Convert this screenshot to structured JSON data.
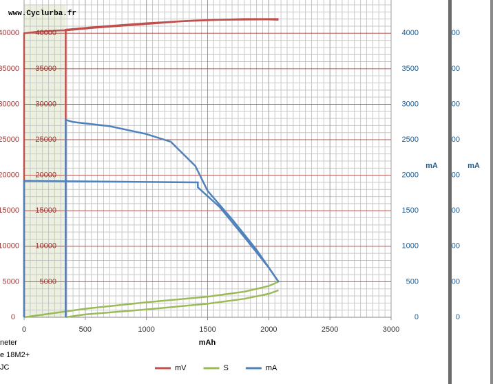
{
  "watermark": "www.Cyclurba.fr",
  "notes": [
    "neter",
    "e 18M2+",
    "JC"
  ],
  "chart_data": {
    "type": "line",
    "xlabel": "mAh",
    "y2label": "mA",
    "xlim": [
      0,
      3000
    ],
    "xticks": [
      0,
      500,
      1000,
      1500,
      2000,
      2500,
      3000
    ],
    "ylim": [
      0,
      44000
    ],
    "yticks": [
      0,
      5000,
      10000,
      15000,
      20000,
      25000,
      30000,
      35000,
      40000
    ],
    "y2lim": [
      0,
      4400
    ],
    "y2ticks": [
      0,
      500,
      1000,
      1500,
      2000,
      2500,
      3000,
      3500,
      4000
    ],
    "grid": true,
    "legend": "bottom",
    "shaded_xrange": [
      0,
      340
    ],
    "series": [
      {
        "name": "mV",
        "color": "#c0504d",
        "axis": "y",
        "x": [
          0,
          0,
          100,
          300,
          340,
          600,
          1000,
          1300,
          1600,
          2000,
          2080,
          null,
          340,
          340,
          600,
          1000,
          1400,
          1800,
          2080
        ],
        "values": [
          0,
          40000,
          40200,
          40400,
          40400,
          40800,
          41300,
          41700,
          41900,
          41950,
          41900,
          null,
          0,
          40500,
          40900,
          41400,
          41800,
          42000,
          42000
        ]
      },
      {
        "name": "S",
        "color": "#9bbb59",
        "axis": "y2",
        "x": [
          0,
          500,
          1000,
          1500,
          1800,
          2000,
          2080,
          null,
          340,
          500,
          1000,
          1500,
          1800,
          2000,
          2080
        ],
        "values": [
          0,
          120,
          210,
          290,
          360,
          440,
          500,
          null,
          0,
          40,
          110,
          190,
          260,
          330,
          380
        ]
      },
      {
        "name": "mA",
        "color": "#4f81bd",
        "axis": "y2",
        "x": [
          0,
          0,
          700,
          1420,
          1420,
          1600,
          1800,
          2000,
          2080,
          null,
          340,
          340,
          400,
          700,
          1000,
          1200,
          1400,
          1500,
          1700,
          1900,
          2080
        ],
        "values": [
          0,
          1920,
          1910,
          1900,
          1830,
          1550,
          1130,
          700,
          500,
          null,
          0,
          2780,
          2750,
          2690,
          2580,
          2470,
          2130,
          1780,
          1380,
          950,
          500
        ]
      }
    ]
  }
}
